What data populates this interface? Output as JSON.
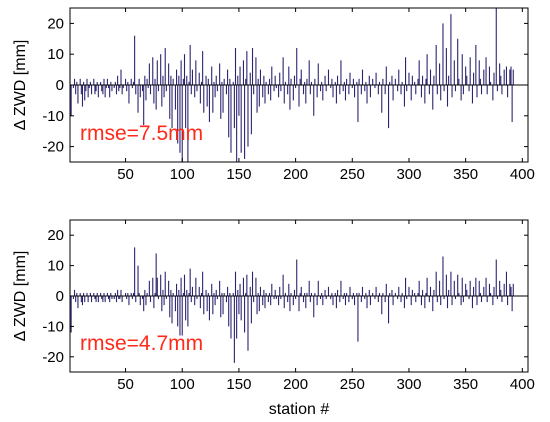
{
  "figure": {
    "xlabel": "station #",
    "series_color": "#2b2470",
    "annotation_color": "#ff2a1a",
    "axis_color": "#000000"
  },
  "chart_data": [
    {
      "type": "bar",
      "title": "",
      "xlabel": "",
      "ylabel": "Δ ZWD [mm]",
      "annotation": "rmse=7.5mm",
      "xlim": [
        1,
        405
      ],
      "ylim": [
        -25,
        25
      ],
      "xticks": [
        50,
        100,
        150,
        200,
        250,
        300,
        350,
        400
      ],
      "yticks": [
        -20,
        -10,
        0,
        10,
        20
      ],
      "grid": false,
      "x_start": 1,
      "values": [
        8,
        -10,
        0,
        -1,
        2,
        -3,
        1,
        -6,
        0,
        2,
        -3,
        -7,
        1,
        -5,
        -2,
        2,
        -4,
        -1,
        1,
        -3,
        0,
        2,
        -3,
        -2,
        1,
        -4,
        0,
        1,
        -2,
        -3,
        2,
        -4,
        -1,
        2,
        -1,
        -4,
        1,
        -2,
        0,
        -1,
        1,
        -3,
        3,
        -2,
        -1,
        5,
        -3,
        -1,
        0,
        2,
        -2,
        1,
        -6,
        0,
        2,
        -1,
        1,
        16,
        -3,
        0,
        -9,
        2,
        -4,
        0,
        -2,
        -13,
        3,
        -5,
        2,
        -1,
        7,
        -3,
        0,
        9,
        -6,
        2,
        -8,
        8,
        -2,
        0,
        10,
        -7,
        3,
        -4,
        12,
        -2,
        0,
        7,
        -11,
        3,
        -14,
        2,
        0,
        -8,
        5,
        -19,
        3,
        -22,
        8,
        -25,
        2,
        10,
        -14,
        3,
        -25,
        1,
        13,
        -3,
        5,
        0,
        -4,
        8,
        -2,
        0,
        4,
        -6,
        1,
        11,
        -9,
        0,
        3,
        -7,
        2,
        -12,
        0,
        6,
        -9,
        1,
        -4,
        3,
        -2,
        0,
        7,
        -11,
        1,
        -9,
        2,
        0,
        -3,
        5,
        -17,
        2,
        -22,
        0,
        1,
        -14,
        12,
        -25,
        3,
        -10,
        6,
        -22,
        0,
        8,
        -24,
        2,
        11,
        -20,
        0,
        4,
        -16,
        12,
        -3,
        0,
        9,
        -9,
        2,
        -7,
        5,
        0,
        -4,
        3,
        -6,
        1,
        0,
        -3,
        2,
        -5,
        6,
        0,
        -2,
        3,
        -1,
        0,
        -4,
        4,
        -2,
        0,
        9,
        -6,
        1,
        0,
        -3,
        6,
        -8,
        2,
        0,
        -5,
        3,
        -1,
        12,
        0,
        -7,
        2,
        5,
        0,
        -3,
        1,
        -6,
        2,
        0,
        8,
        -3,
        1,
        0,
        -10,
        2,
        0,
        -4,
        7,
        0,
        -2,
        1,
        -5,
        0,
        3,
        -2,
        0,
        5,
        0,
        -1,
        2,
        -4,
        0,
        1,
        -6,
        3,
        0,
        -3,
        8,
        0,
        -2,
        1,
        -5,
        2,
        0,
        -3,
        4,
        0,
        -1,
        2,
        -4,
        0,
        1,
        -12,
        2,
        0,
        -3,
        5,
        0,
        -2,
        1,
        -6,
        0,
        3,
        -4,
        0,
        2,
        0,
        -1,
        4,
        0,
        -3,
        1,
        0,
        -9,
        2,
        0,
        -3,
        6,
        0,
        -14,
        1,
        0,
        3,
        -5,
        0,
        2,
        0,
        -2,
        5,
        0,
        -3,
        1,
        0,
        -7,
        9,
        -2,
        0,
        4,
        0,
        -5,
        3,
        0,
        1,
        -3,
        0,
        2,
        8,
        0,
        -4,
        3,
        0,
        -6,
        2,
        10,
        0,
        -3,
        5,
        0,
        -8,
        3,
        0,
        13,
        -3,
        0,
        7,
        -5,
        0,
        20,
        -2,
        0,
        12,
        -7,
        3,
        0,
        23,
        -4,
        0,
        8,
        -2,
        0,
        15,
        2,
        0,
        -5,
        10,
        -3,
        0,
        6,
        3,
        0,
        -2,
        9,
        0,
        -6,
        4,
        0,
        13,
        -4,
        0,
        8,
        2,
        -3,
        0,
        5,
        0,
        9,
        -3,
        0,
        6,
        1,
        0,
        -5,
        4,
        0,
        25,
        -2,
        0,
        7,
        3,
        -3,
        0,
        5,
        0,
        6,
        -4,
        0,
        5,
        6,
        -12,
        5
      ]
    },
    {
      "type": "bar",
      "title": "",
      "xlabel": "station #",
      "ylabel": "Δ ZWD [mm]",
      "annotation": "rmse=4.7mm",
      "xlim": [
        1,
        405
      ],
      "ylim": [
        -25,
        25
      ],
      "xticks": [
        50,
        100,
        150,
        200,
        250,
        300,
        350,
        400
      ],
      "yticks": [
        -20,
        -10,
        0,
        10,
        20
      ],
      "grid": false,
      "x_start": 1,
      "values": [
        8,
        -12,
        0,
        -1,
        2,
        -2,
        1,
        -4,
        0,
        1,
        -2,
        -3,
        1,
        -2,
        0,
        1,
        -2,
        0,
        1,
        -2,
        0,
        1,
        -1,
        -2,
        1,
        -2,
        0,
        1,
        -1,
        -2,
        1,
        -2,
        0,
        1,
        -1,
        -2,
        1,
        -1,
        0,
        -1,
        1,
        -2,
        2,
        -1,
        -1,
        2,
        -2,
        0,
        0,
        1,
        -1,
        1,
        -3,
        0,
        1,
        -1,
        1,
        16,
        -2,
        0,
        10,
        1,
        -3,
        0,
        -1,
        -5,
        2,
        -3,
        1,
        0,
        5,
        -2,
        0,
        6,
        -4,
        1,
        14,
        6,
        -1,
        0,
        7,
        -5,
        2,
        -3,
        8,
        -1,
        0,
        5,
        -7,
        2,
        -9,
        1,
        0,
        -5,
        4,
        -10,
        2,
        -13,
        6,
        -13,
        1,
        7,
        -8,
        2,
        -10,
        1,
        9,
        -2,
        3,
        0,
        -3,
        6,
        -1,
        0,
        3,
        -4,
        1,
        8,
        -6,
        0,
        2,
        -5,
        1,
        -8,
        0,
        4,
        -6,
        1,
        -3,
        2,
        -1,
        0,
        5,
        -7,
        1,
        -6,
        1,
        0,
        -2,
        3,
        -10,
        1,
        -14,
        0,
        1,
        -22,
        8,
        -14,
        2,
        -6,
        4,
        -8,
        0,
        6,
        -12,
        1,
        7,
        -18,
        0,
        3,
        -9,
        8,
        -2,
        0,
        6,
        -6,
        1,
        -5,
        3,
        0,
        -3,
        2,
        -4,
        1,
        0,
        -2,
        1,
        -3,
        4,
        0,
        -1,
        2,
        -1,
        0,
        -3,
        3,
        -1,
        0,
        7,
        -4,
        1,
        0,
        -2,
        4,
        -5,
        1,
        0,
        -3,
        2,
        -1,
        12,
        0,
        -5,
        1,
        3,
        0,
        -2,
        1,
        -4,
        1,
        0,
        5,
        -2,
        1,
        0,
        -7,
        1,
        0,
        -3,
        5,
        0,
        -1,
        1,
        -3,
        0,
        2,
        -1,
        0,
        3,
        0,
        -1,
        1,
        -3,
        0,
        1,
        -4,
        2,
        0,
        -2,
        5,
        0,
        -1,
        1,
        -3,
        1,
        0,
        -2,
        3,
        0,
        -1,
        1,
        -3,
        0,
        1,
        -15,
        1,
        0,
        -2,
        3,
        0,
        -1,
        1,
        -4,
        0,
        2,
        -3,
        0,
        1,
        0,
        -1,
        3,
        0,
        -2,
        1,
        0,
        -6,
        1,
        0,
        -2,
        4,
        0,
        -9,
        1,
        0,
        2,
        -3,
        0,
        1,
        0,
        -1,
        3,
        0,
        -2,
        1,
        0,
        -4,
        6,
        -1,
        0,
        3,
        0,
        -3,
        2,
        0,
        1,
        -2,
        0,
        1,
        5,
        0,
        -3,
        2,
        0,
        -4,
        1,
        6,
        0,
        -2,
        3,
        0,
        -5,
        2,
        0,
        8,
        -2,
        0,
        5,
        -3,
        0,
        13,
        -1,
        0,
        7,
        -4,
        2,
        0,
        8,
        -3,
        0,
        5,
        -1,
        0,
        7,
        1,
        0,
        -3,
        6,
        -2,
        0,
        4,
        2,
        0,
        -1,
        5,
        0,
        -4,
        3,
        0,
        6,
        -3,
        0,
        5,
        1,
        -2,
        0,
        3,
        0,
        6,
        -2,
        0,
        4,
        1,
        0,
        -3,
        3,
        0,
        12,
        -1,
        0,
        5,
        2,
        -2,
        0,
        4,
        0,
        8,
        -3,
        0,
        4,
        3,
        -5,
        4
      ]
    }
  ]
}
